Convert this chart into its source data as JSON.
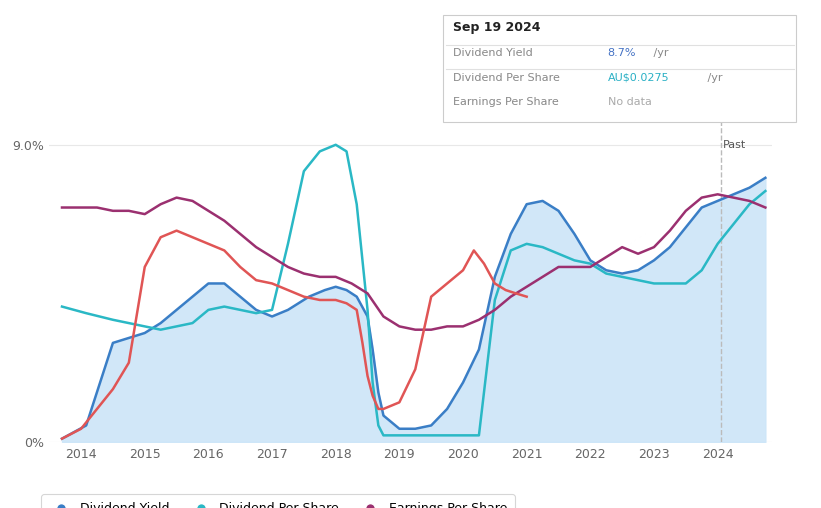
{
  "title": "Sep 19 2024",
  "tooltip_rows": [
    {
      "label": "Dividend Yield",
      "value": "8.7%",
      "suffix": " /yr",
      "value_color": "#4472c4"
    },
    {
      "label": "Dividend Per Share",
      "value": "AU$0.0275",
      "suffix": " /yr",
      "value_color": "#2ab0c5"
    },
    {
      "label": "Earnings Per Share",
      "value": "No data",
      "suffix": "",
      "value_color": "#aaaaaa"
    }
  ],
  "past_label": "Past",
  "bg_color": "#ffffff",
  "plot_bg_color": "#ffffff",
  "fill_color": "#cce5f8",
  "grid_color": "#e8e8e8",
  "dividend_yield_color": "#3a7ec6",
  "dividend_per_share_color": "#2ab8c5",
  "earnings_per_share_color": "#9b3070",
  "red_line_color": "#e05555",
  "legend_items": [
    {
      "label": "Dividend Yield",
      "color": "#3a7ec6"
    },
    {
      "label": "Dividend Per Share",
      "color": "#2ab8c5"
    },
    {
      "label": "Earnings Per Share",
      "color": "#9b3070"
    }
  ],
  "x_ticks": [
    2014,
    2015,
    2016,
    2017,
    2018,
    2019,
    2020,
    2021,
    2022,
    2023,
    2024
  ],
  "yticks": [
    0.0,
    0.09
  ],
  "ytick_labels": [
    "0%",
    "9.0%"
  ],
  "ylim": [
    0,
    0.1
  ],
  "xlim": [
    2013.5,
    2024.85
  ],
  "past_line_x": 2024.05,
  "past_line_color": "#bbbbbb",
  "dividend_yield_x": [
    2013.7,
    2014.08,
    2014.5,
    2015.0,
    2015.25,
    2015.5,
    2015.75,
    2016.0,
    2016.25,
    2016.5,
    2016.75,
    2017.0,
    2017.25,
    2017.58,
    2017.83,
    2018.0,
    2018.17,
    2018.33,
    2018.5,
    2018.58,
    2018.67,
    2018.75,
    2019.0,
    2019.25,
    2019.5,
    2019.75,
    2020.0,
    2020.25,
    2020.5,
    2020.75,
    2021.0,
    2021.25,
    2021.5,
    2021.75,
    2022.0,
    2022.25,
    2022.5,
    2022.75,
    2023.0,
    2023.25,
    2023.5,
    2023.75,
    2024.0,
    2024.25,
    2024.5,
    2024.75
  ],
  "dividend_yield_y": [
    0.001,
    0.005,
    0.03,
    0.033,
    0.036,
    0.04,
    0.044,
    0.048,
    0.048,
    0.044,
    0.04,
    0.038,
    0.04,
    0.044,
    0.046,
    0.047,
    0.046,
    0.044,
    0.038,
    0.028,
    0.015,
    0.008,
    0.004,
    0.004,
    0.005,
    0.01,
    0.018,
    0.028,
    0.05,
    0.063,
    0.072,
    0.073,
    0.07,
    0.063,
    0.055,
    0.052,
    0.051,
    0.052,
    0.055,
    0.059,
    0.065,
    0.071,
    0.073,
    0.075,
    0.077,
    0.08
  ],
  "dividend_per_share_x": [
    2013.7,
    2014.08,
    2014.5,
    2014.75,
    2015.0,
    2015.25,
    2015.5,
    2015.75,
    2016.0,
    2016.25,
    2016.5,
    2016.75,
    2017.0,
    2017.25,
    2017.5,
    2017.75,
    2018.0,
    2018.17,
    2018.33,
    2018.5,
    2018.58,
    2018.67,
    2018.75,
    2019.0,
    2019.25,
    2019.5,
    2019.75,
    2020.0,
    2020.25,
    2020.5,
    2020.75,
    2021.0,
    2021.25,
    2021.5,
    2021.75,
    2022.0,
    2022.25,
    2022.5,
    2022.75,
    2023.0,
    2023.25,
    2023.5,
    2023.75,
    2024.0,
    2024.25,
    2024.5,
    2024.75
  ],
  "dividend_per_share_y": [
    0.041,
    0.039,
    0.037,
    0.036,
    0.035,
    0.034,
    0.035,
    0.036,
    0.04,
    0.041,
    0.04,
    0.039,
    0.04,
    0.06,
    0.082,
    0.088,
    0.09,
    0.088,
    0.072,
    0.04,
    0.018,
    0.005,
    0.002,
    0.002,
    0.002,
    0.002,
    0.002,
    0.002,
    0.002,
    0.043,
    0.058,
    0.06,
    0.059,
    0.057,
    0.055,
    0.054,
    0.051,
    0.05,
    0.049,
    0.048,
    0.048,
    0.048,
    0.052,
    0.06,
    0.066,
    0.072,
    0.076
  ],
  "earnings_per_share_x": [
    2013.7,
    2014.0,
    2014.25,
    2014.5,
    2014.75,
    2015.0,
    2015.25,
    2015.5,
    2015.75,
    2016.0,
    2016.25,
    2016.5,
    2016.75,
    2017.0,
    2017.25,
    2017.5,
    2017.75,
    2018.0,
    2018.25,
    2018.5,
    2018.75,
    2019.0,
    2019.25,
    2019.5,
    2019.75,
    2020.0,
    2020.25,
    2020.5,
    2020.75,
    2021.0,
    2021.25,
    2021.5,
    2021.75,
    2022.0,
    2022.25,
    2022.5,
    2022.75,
    2023.0,
    2023.25,
    2023.5,
    2023.75,
    2024.0,
    2024.25,
    2024.5,
    2024.75
  ],
  "earnings_per_share_y": [
    0.071,
    0.071,
    0.071,
    0.07,
    0.07,
    0.069,
    0.072,
    0.074,
    0.073,
    0.07,
    0.067,
    0.063,
    0.059,
    0.056,
    0.053,
    0.051,
    0.05,
    0.05,
    0.048,
    0.045,
    0.038,
    0.035,
    0.034,
    0.034,
    0.035,
    0.035,
    0.037,
    0.04,
    0.044,
    0.047,
    0.05,
    0.053,
    0.053,
    0.053,
    0.056,
    0.059,
    0.057,
    0.059,
    0.064,
    0.07,
    0.074,
    0.075,
    0.074,
    0.073,
    0.071
  ],
  "red_line_x": [
    2013.7,
    2014.0,
    2014.25,
    2014.5,
    2014.75,
    2015.0,
    2015.25,
    2015.5,
    2016.0,
    2016.25,
    2016.5,
    2016.75,
    2017.0,
    2017.25,
    2017.5,
    2017.75,
    2018.0,
    2018.17,
    2018.33,
    2018.42,
    2018.5,
    2018.58,
    2018.67,
    2018.75,
    2019.0,
    2019.25,
    2019.5,
    2019.75,
    2020.0,
    2020.17,
    2020.33,
    2020.5,
    2020.67,
    2020.83,
    2021.0
  ],
  "red_line_y": [
    0.001,
    0.004,
    0.01,
    0.016,
    0.024,
    0.053,
    0.062,
    0.064,
    0.06,
    0.058,
    0.053,
    0.049,
    0.048,
    0.046,
    0.044,
    0.043,
    0.043,
    0.042,
    0.04,
    0.03,
    0.02,
    0.014,
    0.01,
    0.01,
    0.012,
    0.022,
    0.044,
    0.048,
    0.052,
    0.058,
    0.054,
    0.048,
    0.046,
    0.045,
    0.044
  ]
}
